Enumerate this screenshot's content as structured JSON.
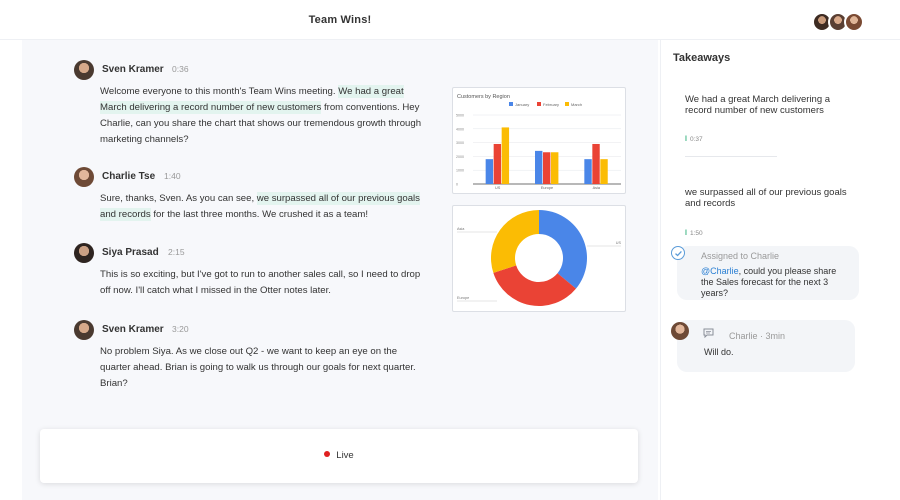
{
  "header": {
    "title": "Team Wins!",
    "participants": [
      "avatar-1",
      "avatar-2",
      "avatar-3"
    ]
  },
  "messages": [
    {
      "name": "Sven Kramer",
      "time": "0:36",
      "before": "Welcome everyone to this month's Team Wins meeting. ",
      "highlight": "We had a great March delivering a record number of new customers",
      "after": " from conventions. Hey Charlie, can you share the chart that shows our tremendous growth through marketing channels?"
    },
    {
      "name": "Charlie Tse",
      "time": "1:40",
      "before": "Sure, thanks, Sven. As you can see, ",
      "highlight": "we surpassed all of our previous goals and records",
      "after": " for the last three months. We crushed it as a team!"
    },
    {
      "name": "Siya Prasad",
      "time": "2:15",
      "before": "This is so exciting, but I've got to run to another sales call, so I need to drop off now. I'll catch what I missed in the Otter notes later.",
      "highlight": "",
      "after": ""
    },
    {
      "name": "Sven Kramer",
      "time": "3:20",
      "before": "No problem Siya. As we close out Q2 - we want to keep an eye on the quarter ahead. Brian is going to walk us through our goals for next quarter. Brian?",
      "highlight": "",
      "after": ""
    }
  ],
  "live": {
    "label": "Live"
  },
  "sidebar": {
    "title": "Takeaways",
    "takeaways": [
      {
        "text": "We had a great March delivering a record number of new customers",
        "time": "0:37"
      },
      {
        "text": "we surpassed all of our previous goals and records",
        "time": "1:50"
      }
    ],
    "assignment": {
      "label": "Assigned to Charlie",
      "mention": "@Charlie",
      "text": ", could you please share the Sales forecast for the next 3 years?"
    },
    "comment": {
      "author": "Charlie · 3min",
      "text": "Will do."
    }
  },
  "chart_data": [
    {
      "type": "bar",
      "title": "Customers by Region",
      "categories": [
        "US",
        "Europe",
        "Asia"
      ],
      "series": [
        {
          "name": "January",
          "color": "#4a86e8",
          "values": [
            1800,
            2400,
            1800
          ]
        },
        {
          "name": "February",
          "color": "#ea4335",
          "values": [
            2900,
            2300,
            2900
          ]
        },
        {
          "name": "March",
          "color": "#fbbc04",
          "values": [
            4100,
            2300,
            1800
          ]
        }
      ],
      "yticks": [
        "5000",
        "4000",
        "3000",
        "2000",
        "1000",
        "0"
      ],
      "ylim": [
        0,
        5000
      ]
    },
    {
      "type": "pie",
      "title": "",
      "slices": [
        {
          "label": "US",
          "pct": "",
          "value": 36,
          "color": "#4a86e8"
        },
        {
          "label": "Europe",
          "pct": "",
          "value": 34,
          "color": "#ea4335"
        },
        {
          "label": "Asia",
          "pct": "",
          "value": 30,
          "color": "#fbbc04"
        }
      ]
    }
  ]
}
